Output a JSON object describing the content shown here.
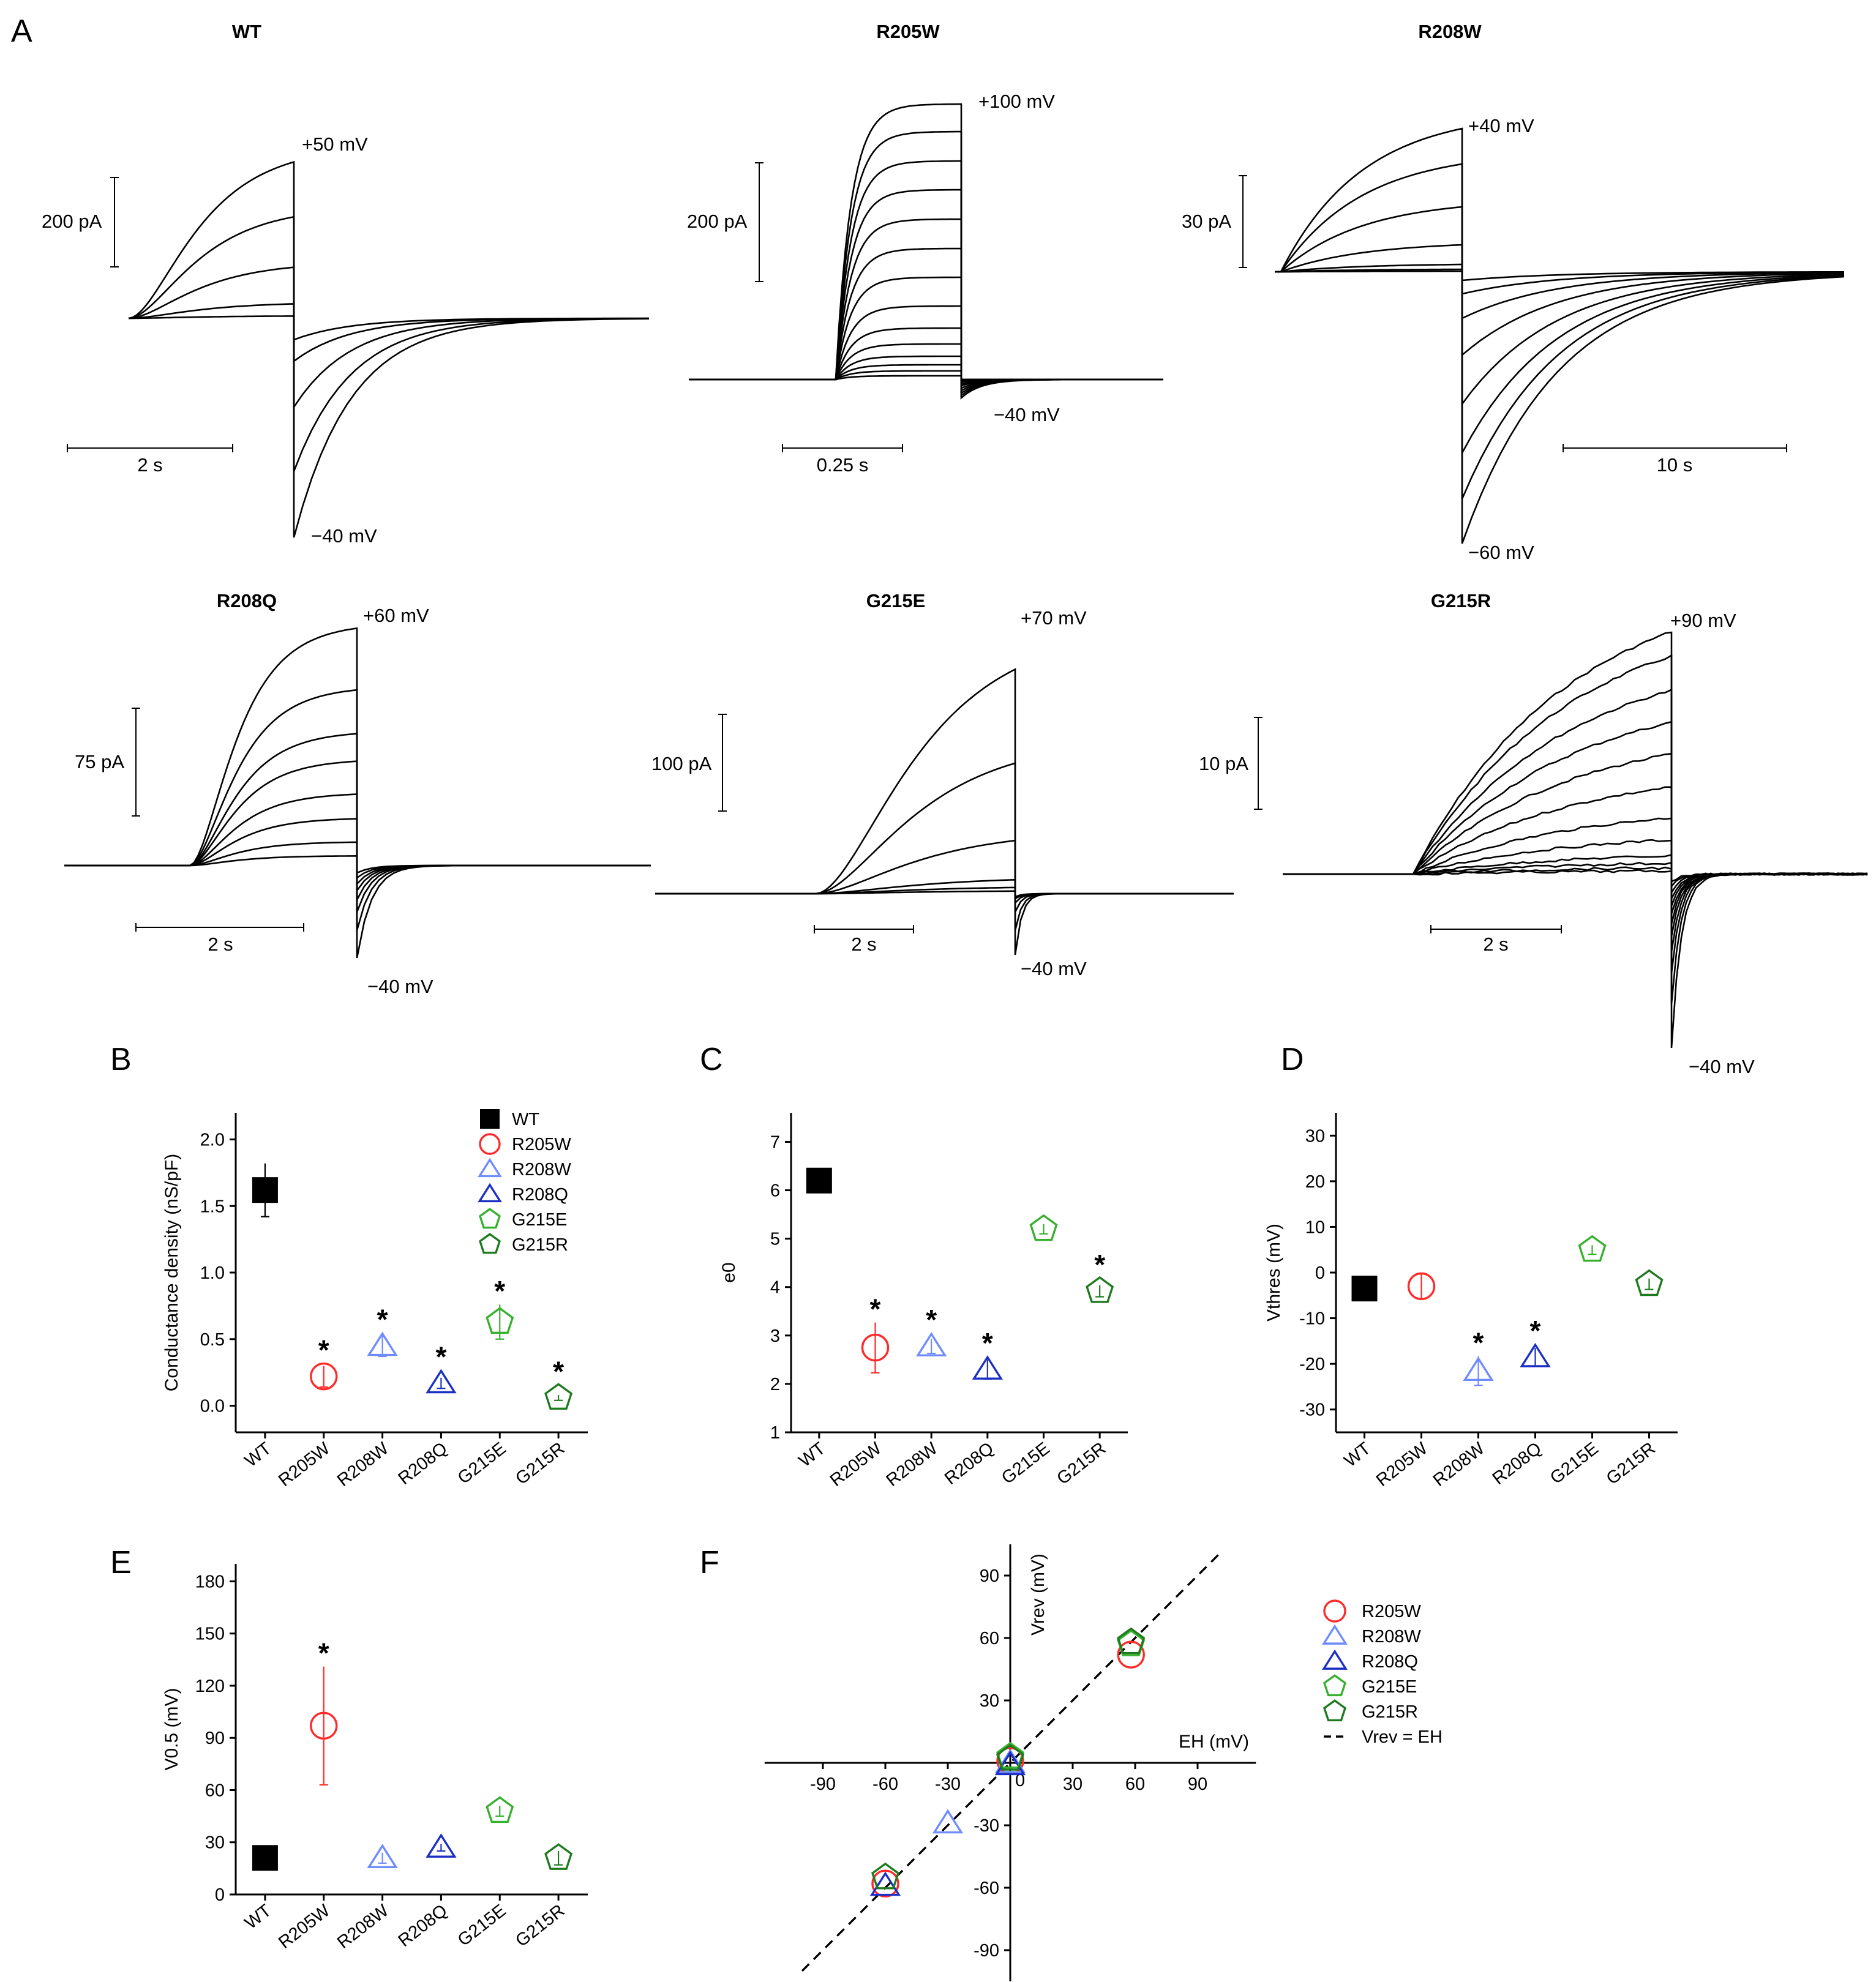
{
  "colors": {
    "WT": "#000000",
    "R205W": "#ff2a2a",
    "R208W": "#6f8cff",
    "R208Q": "#1c2fc4",
    "G215E": "#36b12e",
    "G215R": "#1e7a1e"
  },
  "marker_icons": {
    "WT": "filled-square-icon",
    "R205W": "circle-icon",
    "R208W": "triangle-icon",
    "R208Q": "triangle-icon",
    "G215E": "pentagon-icon",
    "G215R": "pentagon-icon"
  },
  "panel_A": {
    "letter": "A",
    "traces": [
      {
        "id": "wt",
        "title": "WT",
        "v_top": "+50 mV",
        "v_bottom": "−40 mV",
        "scale_current": "200 pA",
        "scale_time": "2 s"
      },
      {
        "id": "r205w",
        "title": "R205W",
        "v_top": "+100 mV",
        "v_bottom": "−40 mV",
        "scale_current": "200 pA",
        "scale_time": "0.25 s"
      },
      {
        "id": "r208w",
        "title": "R208W",
        "v_top": "+40 mV",
        "v_bottom": "−60 mV",
        "scale_current": "30 pA",
        "scale_time": "10 s"
      },
      {
        "id": "r208q",
        "title": "R208Q",
        "v_top": "+60 mV",
        "v_bottom": "−40 mV",
        "scale_current": "75 pA",
        "scale_time": "2 s"
      },
      {
        "id": "g215e",
        "title": "G215E",
        "v_top": "+70 mV",
        "v_bottom": "−40 mV",
        "scale_current": "100 pA",
        "scale_time": "2 s"
      },
      {
        "id": "g215r",
        "title": "G215R",
        "v_top": "+90 mV",
        "v_bottom": "−40 mV",
        "scale_current": "10 pA",
        "scale_time": "2 s"
      }
    ]
  },
  "chart_data": [
    {
      "id": "B",
      "letter": "B",
      "type": "scatter",
      "ylabel": "Conductance density (nS/pF)",
      "categories": [
        "WT",
        "R205W",
        "R208W",
        "R208Q",
        "G215E",
        "G215R"
      ],
      "values": [
        1.62,
        0.22,
        0.45,
        0.17,
        0.63,
        0.06
      ],
      "errors": [
        0.2,
        0.08,
        0.08,
        0.04,
        0.13,
        0.02
      ],
      "significant": [
        false,
        true,
        true,
        true,
        true,
        true
      ],
      "star": "*",
      "ylim": [
        -0.2,
        2.2
      ],
      "yticks": [
        "0.0",
        "0.5",
        "1.0",
        "1.5",
        "2.0"
      ],
      "legend": [
        "WT",
        "R205W",
        "R208W",
        "R208Q",
        "G215E",
        "G215R"
      ]
    },
    {
      "id": "C",
      "letter": "C",
      "type": "scatter",
      "ylabel": "e0",
      "categories": [
        "WT",
        "R205W",
        "R208W",
        "R208Q",
        "G215E",
        "G215R"
      ],
      "values": [
        6.2,
        2.75,
        2.78,
        2.3,
        5.2,
        3.92
      ],
      "errors": [
        0.1,
        0.52,
        0.15,
        0.2,
        0.1,
        0.12
      ],
      "significant": [
        false,
        true,
        true,
        true,
        false,
        true
      ],
      "star": "*",
      "ylim": [
        1,
        7.6
      ],
      "yticks": [
        "1",
        "2",
        "3",
        "4",
        "5",
        "6",
        "7"
      ]
    },
    {
      "id": "D",
      "letter": "D",
      "type": "scatter",
      "ylabel": "Vthres (mV)",
      "categories": [
        "WT",
        "R205W",
        "R208W",
        "R208Q",
        "G215E",
        "G215R"
      ],
      "values": [
        -3.5,
        -3.0,
        -21.5,
        -18.5,
        5.0,
        -2.5
      ],
      "errors": [
        0.8,
        2.8,
        3.2,
        2.0,
        1.0,
        1.2
      ],
      "significant": [
        false,
        false,
        true,
        true,
        false,
        false
      ],
      "star": "*",
      "ylim": [
        -35,
        35
      ],
      "yticks": [
        "-30",
        "-20",
        "-10",
        "0",
        "10",
        "20",
        "30"
      ]
    },
    {
      "id": "E",
      "letter": "E",
      "type": "scatter",
      "ylabel": "V0.5 (mV)",
      "categories": [
        "WT",
        "R205W",
        "R208W",
        "R208Q",
        "G215E",
        "G215R"
      ],
      "values": [
        21,
        97,
        21,
        27,
        48,
        21
      ],
      "errors": [
        1.5,
        34,
        3,
        2,
        3,
        4
      ],
      "significant": [
        false,
        true,
        false,
        false,
        false,
        false
      ],
      "star": "*",
      "ylim": [
        0,
        190
      ],
      "yticks": [
        "0",
        "30",
        "60",
        "90",
        "120",
        "150",
        "180"
      ]
    },
    {
      "id": "F",
      "letter": "F",
      "type": "scatter",
      "xlabel": "EH (mV)",
      "ylabel": "Vrev (mV)",
      "xlim": [
        -118,
        118
      ],
      "ylim": [
        -105,
        105
      ],
      "ticks": [
        -90,
        -60,
        -30,
        30,
        60,
        90
      ],
      "origin_label": "0",
      "points": [
        {
          "group": "R205W",
          "x": 58,
          "y": 52
        },
        {
          "group": "R205W",
          "x": 0,
          "y": 1
        },
        {
          "group": "R205W",
          "x": -60,
          "y": -58
        },
        {
          "group": "R208W",
          "x": -30,
          "y": -29
        },
        {
          "group": "R208W",
          "x": 0,
          "y": 0
        },
        {
          "group": "R208Q",
          "x": -60,
          "y": -59
        },
        {
          "group": "R208Q",
          "x": 0,
          "y": -1
        },
        {
          "group": "G215E",
          "x": 58,
          "y": 57
        },
        {
          "group": "G215E",
          "x": 0,
          "y": 3
        },
        {
          "group": "G215R",
          "x": 58,
          "y": 58
        },
        {
          "group": "G215R",
          "x": 0,
          "y": 2
        },
        {
          "group": "G215R",
          "x": -60,
          "y": -55
        }
      ],
      "legend": [
        "R205W",
        "R208W",
        "R208Q",
        "G215E",
        "G215R"
      ],
      "identity_label": "Vrev = EH"
    }
  ]
}
